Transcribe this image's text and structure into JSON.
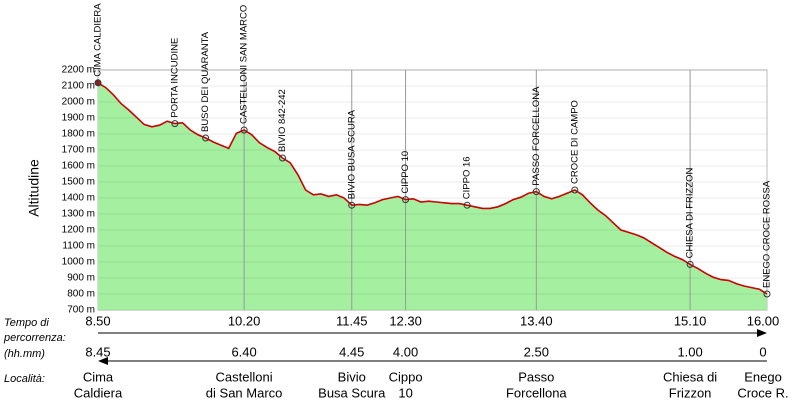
{
  "chart_data": {
    "type": "area",
    "y_label": "Altitudine",
    "ylim": [
      700,
      2200
    ],
    "yticks": [
      {
        "value": 700,
        "label": "700 m"
      },
      {
        "value": 800,
        "label": "800 m"
      },
      {
        "value": 900,
        "label": "900 m"
      },
      {
        "value": 1000,
        "label": "1000 m"
      },
      {
        "value": 1100,
        "label": "1100 m"
      },
      {
        "value": 1200,
        "label": "1200 m"
      },
      {
        "value": 1300,
        "label": "1300 m"
      },
      {
        "value": 1400,
        "label": "1400 m"
      },
      {
        "value": 1500,
        "label": "1500 m"
      },
      {
        "value": 1600,
        "label": "1600 m"
      },
      {
        "value": 1700,
        "label": "1700 m"
      },
      {
        "value": 1800,
        "label": "1800 m"
      },
      {
        "value": 1900,
        "label": "1900 m"
      },
      {
        "value": 2000,
        "label": "2000 m"
      },
      {
        "value": 2100,
        "label": "2100 m"
      },
      {
        "value": 2200,
        "label": "2200 m"
      }
    ],
    "grid": true,
    "color": "#cc0000",
    "fill": "#a4f0a0",
    "categories": [
      "CIMA CALDIERA",
      null,
      null,
      null,
      null,
      null,
      null,
      null,
      null,
      null,
      "PORTA INCUDINE",
      null,
      null,
      null,
      "BUSO DEI QUARANTA",
      null,
      null,
      null,
      null,
      "CASTELLONI SAN MARCO",
      null,
      null,
      null,
      null,
      "BIVIO 842-242",
      null,
      null,
      null,
      null,
      null,
      null,
      null,
      null,
      "BIVIO BUSA SCURA",
      null,
      null,
      null,
      null,
      null,
      null,
      "CIPPO 10",
      null,
      null,
      null,
      null,
      null,
      null,
      null,
      "CIPPO 16",
      null,
      null,
      null,
      null,
      null,
      null,
      null,
      null,
      "PASSO FORCELLONA",
      null,
      null,
      null,
      null,
      "CROCE DI CAMPO",
      null,
      null,
      null,
      null,
      null,
      null,
      null,
      null,
      null,
      null,
      null,
      null,
      null,
      null,
      "CHIESA DI FRIZZON",
      null,
      null,
      null,
      null,
      null,
      null,
      null,
      null,
      null,
      "ENEGO CROCE ROSSA"
    ],
    "values": [
      2120,
      2090,
      2045,
      1990,
      1950,
      1905,
      1860,
      1845,
      1855,
      1880,
      1865,
      1870,
      1825,
      1795,
      1775,
      1750,
      1730,
      1710,
      1805,
      1825,
      1795,
      1745,
      1715,
      1690,
      1650,
      1620,
      1545,
      1450,
      1420,
      1425,
      1410,
      1420,
      1400,
      1355,
      1360,
      1355,
      1370,
      1390,
      1400,
      1410,
      1390,
      1395,
      1375,
      1380,
      1375,
      1370,
      1365,
      1365,
      1355,
      1345,
      1335,
      1335,
      1345,
      1365,
      1390,
      1405,
      1430,
      1440,
      1410,
      1395,
      1410,
      1430,
      1450,
      1420,
      1370,
      1325,
      1290,
      1245,
      1200,
      1185,
      1170,
      1150,
      1120,
      1090,
      1060,
      1035,
      1015,
      985,
      960,
      930,
      905,
      890,
      885,
      865,
      850,
      840,
      830,
      800
    ],
    "row_labels": {
      "time": [
        "Tempo di",
        "percorrenza:"
      ],
      "unit": "(hh.mm)",
      "locality": "Località:"
    },
    "time_elapsed": [
      "8.50",
      null,
      null,
      null,
      null,
      null,
      null,
      null,
      null,
      null,
      null,
      null,
      null,
      null,
      null,
      null,
      null,
      null,
      null,
      "10.20",
      null,
      null,
      null,
      null,
      null,
      null,
      null,
      null,
      null,
      null,
      null,
      null,
      null,
      "11.45",
      null,
      null,
      null,
      null,
      null,
      null,
      "12.30",
      null,
      null,
      null,
      null,
      null,
      null,
      null,
      null,
      null,
      null,
      null,
      null,
      null,
      null,
      null,
      null,
      "13.40",
      null,
      null,
      null,
      null,
      null,
      null,
      null,
      null,
      null,
      null,
      null,
      null,
      null,
      null,
      null,
      null,
      null,
      null,
      null,
      "15.10",
      null,
      null,
      null,
      null,
      null,
      null,
      null,
      null,
      null,
      "16.00"
    ],
    "time_remaining": [
      "8.45",
      null,
      null,
      null,
      null,
      null,
      null,
      null,
      null,
      null,
      null,
      null,
      null,
      null,
      null,
      null,
      null,
      null,
      null,
      "6.40",
      null,
      null,
      null,
      null,
      null,
      null,
      null,
      null,
      null,
      null,
      null,
      null,
      null,
      "4.45",
      null,
      null,
      null,
      null,
      null,
      null,
      "4.00",
      null,
      null,
      null,
      null,
      null,
      null,
      null,
      null,
      null,
      null,
      null,
      null,
      null,
      null,
      null,
      null,
      "2.50",
      null,
      null,
      null,
      null,
      null,
      null,
      null,
      null,
      null,
      null,
      null,
      null,
      null,
      null,
      null,
      null,
      null,
      null,
      null,
      "1.00",
      null,
      null,
      null,
      null,
      null,
      null,
      null,
      null,
      null,
      "0"
    ],
    "locality": [
      [
        "Cima",
        "Caldiera"
      ],
      null,
      null,
      null,
      null,
      null,
      null,
      null,
      null,
      null,
      null,
      null,
      null,
      null,
      null,
      null,
      null,
      null,
      null,
      [
        "Castelloni",
        "di San Marco"
      ],
      null,
      null,
      null,
      null,
      null,
      null,
      null,
      null,
      null,
      null,
      null,
      null,
      null,
      [
        "Bivio",
        "Busa Scura"
      ],
      null,
      null,
      null,
      null,
      null,
      null,
      [
        "Cippo",
        "10"
      ],
      null,
      null,
      null,
      null,
      null,
      null,
      null,
      null,
      null,
      null,
      null,
      null,
      null,
      null,
      null,
      null,
      [
        "Passo",
        "Forcellona"
      ],
      null,
      null,
      null,
      null,
      null,
      null,
      null,
      null,
      null,
      null,
      null,
      null,
      null,
      null,
      null,
      null,
      null,
      null,
      null,
      [
        "Chiesa di",
        "Frizzon"
      ],
      null,
      null,
      null,
      null,
      null,
      null,
      null,
      null,
      null,
      [
        "Enego",
        "Croce R."
      ]
    ]
  }
}
